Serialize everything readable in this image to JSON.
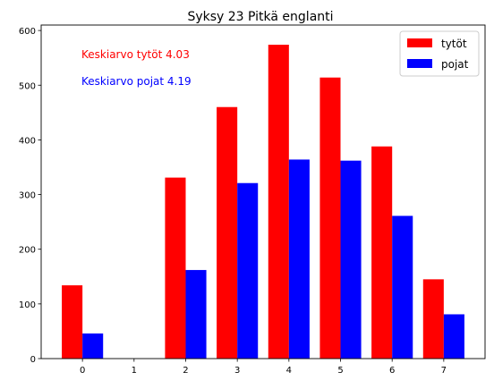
{
  "chart_data": {
    "type": "bar",
    "title": "Syksy 23 Pitkä englanti",
    "xlabel": "",
    "ylabel": "",
    "categories": [
      "0",
      "1",
      "2",
      "3",
      "4",
      "5",
      "6",
      "7"
    ],
    "series": [
      {
        "name": "tytöt",
        "color": "#ff0000",
        "values": [
          134,
          0,
          331,
          460,
          574,
          514,
          388,
          145
        ]
      },
      {
        "name": "pojat",
        "color": "#0000ff",
        "values": [
          46,
          0,
          162,
          321,
          364,
          362,
          261,
          81
        ]
      }
    ],
    "ylim": [
      0,
      610
    ],
    "xlim": [
      -0.8,
      7.8
    ],
    "yticks": [
      0,
      100,
      200,
      300,
      400,
      500,
      600
    ],
    "xticks": [
      "0",
      "1",
      "2",
      "3",
      "4",
      "5",
      "6",
      "7"
    ],
    "legend_position": "top-right",
    "grid": false,
    "annotations": [
      {
        "text": "Keskiarvo tytöt 4.03",
        "color": "#ff0000"
      },
      {
        "text": "Keskiarvo pojat 4.19",
        "color": "#0000ff"
      }
    ]
  }
}
